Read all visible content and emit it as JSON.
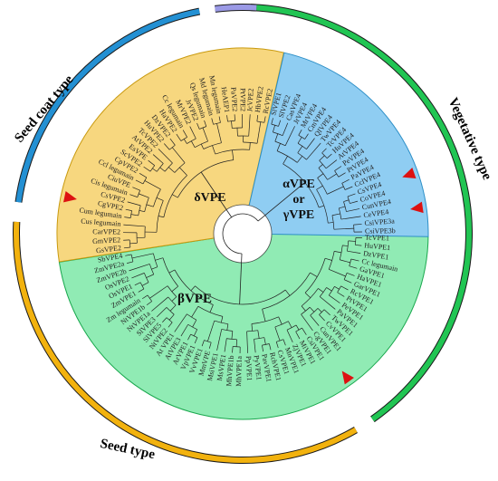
{
  "colors": {
    "alpha_fill": "#90ebb4",
    "alpha_stroke": "#1aa84e",
    "beta_fill": "#f7d77f",
    "beta_stroke": "#c99a0f",
    "delta_fill": "#8fcdf2",
    "delta_stroke": "#2d8fc7",
    "seed_coat_arc": "#2390d3",
    "vegetative_arc": "#21c553",
    "seed_arc": "#f2b20e",
    "extra_arc": "#9b9ae6",
    "branch": "#222222",
    "marker": "#dd1111"
  },
  "clade_labels": {
    "delta": "δVPE",
    "alpha_line1": "αVPE",
    "alpha_line2": "or",
    "alpha_line3": "γVPE",
    "beta": "βVPE"
  },
  "type_labels": {
    "seed_coat": "Seed coat type",
    "vegetative": "Vegetative type",
    "seed": "Seed type"
  },
  "leaves": [
    "TcVPE1",
    "HuVPE1",
    "DzVPE1",
    "Cc legumain",
    "GaVPE1",
    "HaVPE1",
    "GarVPE1",
    "RcVPE1",
    "PtVPE1",
    "PeVPE1",
    "PaVPE1",
    "TwVPE1",
    "CvVPE1",
    "CunVPE1",
    "CgVPE1",
    "CsiVPE1",
    "MiVPE1",
    "ZjVPE1",
    "MnVPE1",
    "CsVPE1",
    "RchVPE1",
    "PavVPE1",
    "PyVPE1",
    "PpVPE1",
    "MhVPE1a",
    "MhVPE1b",
    "MsVPE1",
    "MsiVPE1",
    "MmVPE",
    "VvVPE1",
    "VpVPE1",
    "ArVPE1",
    "AtVPE3",
    "At VPE1",
    "NtVPE2",
    "SlVPE5",
    "SlVPE3",
    "NtVPE1a",
    "NtVPE1b",
    "Zm legumain",
    "ZmVPE1",
    "OsVPE1",
    "OsVPE2",
    "ZmVPE2b",
    "ZmVPE2a",
    "SbVPE4",
    "GsVPE2",
    "GmVPE2",
    "CarVPE2",
    "Cus legumain",
    "Cum legumain",
    "CgVPE2",
    "CsVPE2",
    "Cis legumain",
    "CiuVPE",
    "Ccl legumain",
    "CpVPE2",
    "ScVPE2",
    "EsVPE",
    "AtVPE2",
    "TcVPE2",
    "HuVPE2",
    "DzVPE2",
    "HaVPE2",
    "Cc legumain",
    "MrVPE2",
    "JrVPE2",
    "Qs legumain",
    "Md legumain",
    "Mn legumain",
    "HeAEP1",
    "PaVPE2",
    "PtVPE2",
    "JcVPE2",
    "HbVPE2",
    "RcVPE2",
    "SlVPE1",
    "SlVPE2",
    "CasVPE4",
    "JrVPE4",
    "MrVPE4",
    "CmVPE4",
    "QIVPE4",
    "TwVPE4",
    "TcVPE4",
    "HuVPE4",
    "AtVPE4",
    "PeVPE4",
    "PtVPE4",
    "PaVPE4",
    "CclVPE4",
    "CsVPE4",
    "CoVPE4",
    "CunVPE4",
    "CeVPE4",
    "CsiVPE3a",
    "CsiVPE3b"
  ],
  "markers": [
    "CgVPE1",
    "CgVPE2",
    "CsVPE4",
    "CeVPE4"
  ]
}
